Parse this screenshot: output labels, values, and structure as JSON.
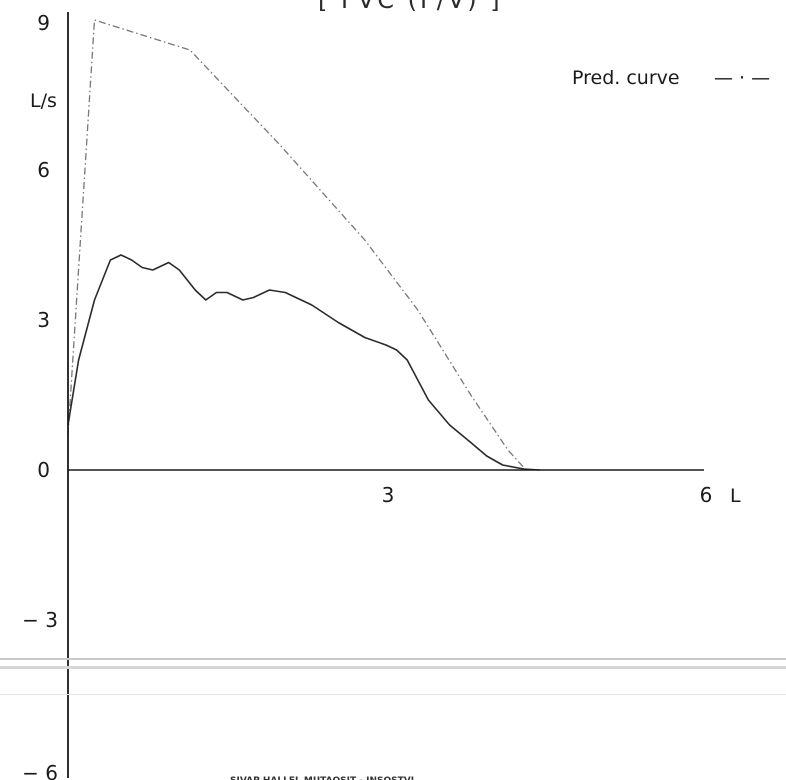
{
  "chart_data": {
    "type": "line",
    "title": "[ FVC (F/V) ]",
    "xlabel": "L",
    "ylabel": "L/s",
    "xlim": [
      0,
      6
    ],
    "ylim": [
      -6,
      9
    ],
    "x_ticks": [
      {
        "value": 3,
        "label": "3"
      },
      {
        "value": 6,
        "label": "6"
      }
    ],
    "y_ticks": [
      {
        "value": 9,
        "label": "9"
      },
      {
        "value": 6,
        "label": "6"
      },
      {
        "value": 3,
        "label": "3"
      },
      {
        "value": 0,
        "label": "0"
      },
      {
        "value": -3,
        "label": "− 3"
      },
      {
        "value": -6,
        "label": "− 6"
      }
    ],
    "grid": false,
    "legend": {
      "position": "top-right",
      "entries": [
        {
          "label": "Pred. curve",
          "symbol": "— · —"
        }
      ]
    },
    "series": [
      {
        "name": "Pred. curve",
        "style": "dash-dot",
        "color": "#777777",
        "points": [
          [
            0.0,
            0.7
          ],
          [
            0.25,
            9.0
          ],
          [
            1.15,
            8.4
          ],
          [
            2.0,
            6.5
          ],
          [
            2.8,
            4.6
          ],
          [
            3.3,
            3.2
          ],
          [
            3.8,
            1.5
          ],
          [
            4.15,
            0.4
          ],
          [
            4.3,
            0.05
          ]
        ]
      },
      {
        "name": "",
        "style": "solid",
        "color": "#2b2b2b",
        "points": [
          [
            0.0,
            0.9
          ],
          [
            0.1,
            2.2
          ],
          [
            0.25,
            3.4
          ],
          [
            0.4,
            4.2
          ],
          [
            0.5,
            4.3
          ],
          [
            0.6,
            4.2
          ],
          [
            0.7,
            4.05
          ],
          [
            0.8,
            4.0
          ],
          [
            0.9,
            4.1
          ],
          [
            0.95,
            4.15
          ],
          [
            1.05,
            4.0
          ],
          [
            1.2,
            3.6
          ],
          [
            1.3,
            3.4
          ],
          [
            1.4,
            3.55
          ],
          [
            1.5,
            3.55
          ],
          [
            1.65,
            3.4
          ],
          [
            1.75,
            3.45
          ],
          [
            1.9,
            3.6
          ],
          [
            2.05,
            3.55
          ],
          [
            2.3,
            3.3
          ],
          [
            2.55,
            2.95
          ],
          [
            2.8,
            2.65
          ],
          [
            3.0,
            2.5
          ],
          [
            3.1,
            2.4
          ],
          [
            3.2,
            2.2
          ],
          [
            3.4,
            1.4
          ],
          [
            3.6,
            0.9
          ],
          [
            3.8,
            0.55
          ],
          [
            3.95,
            0.28
          ],
          [
            4.1,
            0.1
          ],
          [
            4.3,
            0.02
          ],
          [
            4.45,
            0.0
          ]
        ]
      }
    ]
  },
  "footer": {
    "text": "SIVAP HALLEL MUTAOSIT - INSOSTVI"
  },
  "colors": {
    "axis": "#1a1a1a",
    "separator": "#cccccc"
  }
}
